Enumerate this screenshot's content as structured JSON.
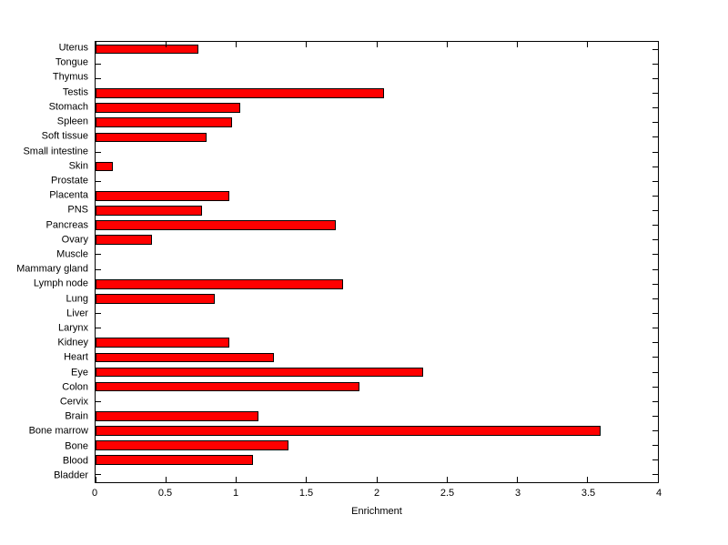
{
  "chart_data": {
    "type": "bar",
    "orientation": "horizontal",
    "title": "",
    "xlabel": "Enrichment",
    "ylabel": "",
    "xlim": [
      0,
      4
    ],
    "xtick_labels": [
      "0",
      "0.5",
      "1",
      "1.5",
      "2",
      "2.5",
      "3",
      "3.5",
      "4"
    ],
    "grid": false,
    "legend": false,
    "bar_color": "#ff0000",
    "bar_edge_color": "#000000",
    "background_color": "#ffffff",
    "categories": [
      "Uterus",
      "Tongue",
      "Thymus",
      "Testis",
      "Stomach",
      "Spleen",
      "Soft tissue",
      "Small intestine",
      "Skin",
      "Prostate",
      "Placenta",
      "PNS",
      "Pancreas",
      "Ovary",
      "Muscle",
      "Mammary gland",
      "Lymph node",
      "Lung",
      "Liver",
      "Larynx",
      "Kidney",
      "Heart",
      "Eye",
      "Colon",
      "Cervix",
      "Brain",
      "Bone marrow",
      "Bone",
      "Blood",
      "Bladder"
    ],
    "values": [
      0.73,
      0,
      0,
      2.05,
      1.03,
      0.97,
      0.79,
      0,
      0.12,
      0,
      0.95,
      0.76,
      1.71,
      0.4,
      0,
      0,
      1.76,
      0.85,
      0,
      0,
      0.95,
      1.27,
      2.33,
      1.88,
      0,
      1.16,
      3.59,
      1.37,
      1.12,
      0
    ]
  }
}
